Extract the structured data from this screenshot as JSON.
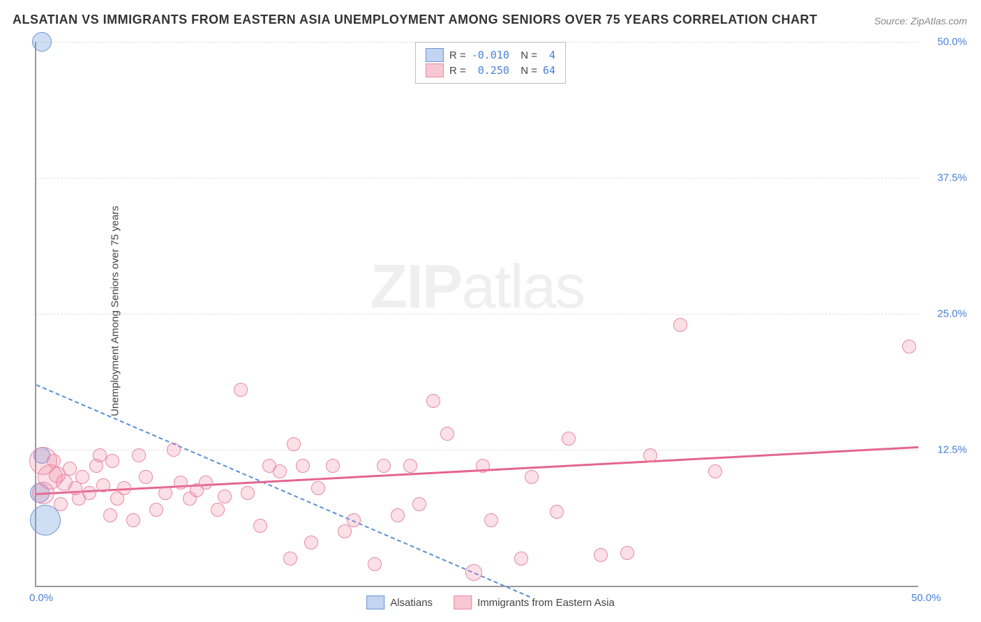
{
  "title": "ALSATIAN VS IMMIGRANTS FROM EASTERN ASIA UNEMPLOYMENT AMONG SENIORS OVER 75 YEARS CORRELATION CHART",
  "source": "Source: ZipAtlas.com",
  "ylabel": "Unemployment Among Seniors over 75 years",
  "watermark_a": "ZIP",
  "watermark_b": "atlas",
  "chart": {
    "type": "scatter",
    "xlim": [
      0,
      50
    ],
    "ylim": [
      0,
      50
    ],
    "xticks": [
      {
        "v": 0,
        "l": "0.0%"
      },
      {
        "v": 50,
        "l": "50.0%"
      }
    ],
    "yticks": [
      {
        "v": 12.5,
        "l": "12.5%"
      },
      {
        "v": 25,
        "l": "25.0%"
      },
      {
        "v": 37.5,
        "l": "37.5%"
      },
      {
        "v": 50,
        "l": "50.0%"
      }
    ],
    "grid_color": "#dddddd",
    "axis_color": "#999999",
    "background_color": "#ffffff",
    "series": [
      {
        "name": "Alsatians",
        "color_fill": "rgba(120,160,220,0.35)",
        "color_stroke": "#6a95d8",
        "R": "-0.010",
        "N": " 4",
        "trend": {
          "x1": 0,
          "y1": 18.5,
          "x2": 28,
          "y2": -1,
          "style": "dashed"
        },
        "points": [
          {
            "x": 0.3,
            "y": 50,
            "r": 14
          },
          {
            "x": 0.2,
            "y": 8.5,
            "r": 14
          },
          {
            "x": 0.5,
            "y": 6,
            "r": 22
          },
          {
            "x": 0.3,
            "y": 12,
            "r": 12
          }
        ]
      },
      {
        "name": "Immigrants from Eastern Asia",
        "color_fill": "rgba(240,130,160,0.25)",
        "color_stroke": "#e888a5",
        "R": " 0.250",
        "N": "64",
        "trend": {
          "x1": 0,
          "y1": 8.5,
          "x2": 50,
          "y2": 12.8,
          "style": "solid"
        },
        "points": [
          {
            "x": 0.4,
            "y": 11.5,
            "r": 20
          },
          {
            "x": 0.8,
            "y": 10,
            "r": 18
          },
          {
            "x": 0.4,
            "y": 8.5,
            "r": 16
          },
          {
            "x": 1.2,
            "y": 10.2,
            "r": 12
          },
          {
            "x": 1.6,
            "y": 9.5,
            "r": 12
          },
          {
            "x": 1.9,
            "y": 10.8,
            "r": 10
          },
          {
            "x": 1.4,
            "y": 7.5,
            "r": 10
          },
          {
            "x": 1.0,
            "y": 11.5,
            "r": 10
          },
          {
            "x": 2.2,
            "y": 9,
            "r": 10
          },
          {
            "x": 2.6,
            "y": 10,
            "r": 10
          },
          {
            "x": 2.4,
            "y": 8,
            "r": 10
          },
          {
            "x": 3.0,
            "y": 8.5,
            "r": 10
          },
          {
            "x": 3.4,
            "y": 11,
            "r": 10
          },
          {
            "x": 3.8,
            "y": 9.2,
            "r": 10
          },
          {
            "x": 3.6,
            "y": 12,
            "r": 10
          },
          {
            "x": 4.3,
            "y": 11.5,
            "r": 10
          },
          {
            "x": 4.6,
            "y": 8,
            "r": 10
          },
          {
            "x": 4.2,
            "y": 6.5,
            "r": 10
          },
          {
            "x": 5.5,
            "y": 6,
            "r": 10
          },
          {
            "x": 5.0,
            "y": 9,
            "r": 10
          },
          {
            "x": 5.8,
            "y": 12,
            "r": 10
          },
          {
            "x": 6.2,
            "y": 10,
            "r": 10
          },
          {
            "x": 6.8,
            "y": 7,
            "r": 10
          },
          {
            "x": 7.3,
            "y": 8.5,
            "r": 10
          },
          {
            "x": 7.8,
            "y": 12.5,
            "r": 10
          },
          {
            "x": 8.2,
            "y": 9.5,
            "r": 10
          },
          {
            "x": 8.7,
            "y": 8,
            "r": 10
          },
          {
            "x": 9.1,
            "y": 8.8,
            "r": 10
          },
          {
            "x": 9.6,
            "y": 9.5,
            "r": 10
          },
          {
            "x": 10.3,
            "y": 7,
            "r": 10
          },
          {
            "x": 10.7,
            "y": 8.2,
            "r": 10
          },
          {
            "x": 11.6,
            "y": 18,
            "r": 10
          },
          {
            "x": 12.0,
            "y": 8.5,
            "r": 10
          },
          {
            "x": 12.7,
            "y": 5.5,
            "r": 10
          },
          {
            "x": 13.2,
            "y": 11,
            "r": 10
          },
          {
            "x": 13.8,
            "y": 10.5,
            "r": 10
          },
          {
            "x": 14.4,
            "y": 2.5,
            "r": 10
          },
          {
            "x": 14.6,
            "y": 13,
            "r": 10
          },
          {
            "x": 15.1,
            "y": 11,
            "r": 10
          },
          {
            "x": 15.6,
            "y": 4,
            "r": 10
          },
          {
            "x": 16.0,
            "y": 9,
            "r": 10
          },
          {
            "x": 16.8,
            "y": 11,
            "r": 10
          },
          {
            "x": 17.5,
            "y": 5,
            "r": 10
          },
          {
            "x": 18.0,
            "y": 6,
            "r": 10
          },
          {
            "x": 19.2,
            "y": 2,
            "r": 10
          },
          {
            "x": 19.7,
            "y": 11,
            "r": 10
          },
          {
            "x": 20.5,
            "y": 6.5,
            "r": 10
          },
          {
            "x": 21.2,
            "y": 11,
            "r": 10
          },
          {
            "x": 21.7,
            "y": 7.5,
            "r": 10
          },
          {
            "x": 22.5,
            "y": 17,
            "r": 10
          },
          {
            "x": 23.3,
            "y": 14,
            "r": 10
          },
          {
            "x": 24.8,
            "y": 1.2,
            "r": 12
          },
          {
            "x": 25.3,
            "y": 11,
            "r": 10
          },
          {
            "x": 25.8,
            "y": 6,
            "r": 10
          },
          {
            "x": 27.5,
            "y": 2.5,
            "r": 10
          },
          {
            "x": 28.1,
            "y": 10,
            "r": 10
          },
          {
            "x": 29.5,
            "y": 6.8,
            "r": 10
          },
          {
            "x": 30.2,
            "y": 13.5,
            "r": 10
          },
          {
            "x": 32.0,
            "y": 2.8,
            "r": 10
          },
          {
            "x": 33.5,
            "y": 3,
            "r": 10
          },
          {
            "x": 34.8,
            "y": 12,
            "r": 10
          },
          {
            "x": 36.5,
            "y": 24,
            "r": 10
          },
          {
            "x": 38.5,
            "y": 10.5,
            "r": 10
          },
          {
            "x": 49.5,
            "y": 22,
            "r": 10
          }
        ]
      }
    ]
  },
  "legend_bottom": [
    {
      "swatch": "blue",
      "label": "Alsatians"
    },
    {
      "swatch": "pink",
      "label": "Immigrants from Eastern Asia"
    }
  ]
}
